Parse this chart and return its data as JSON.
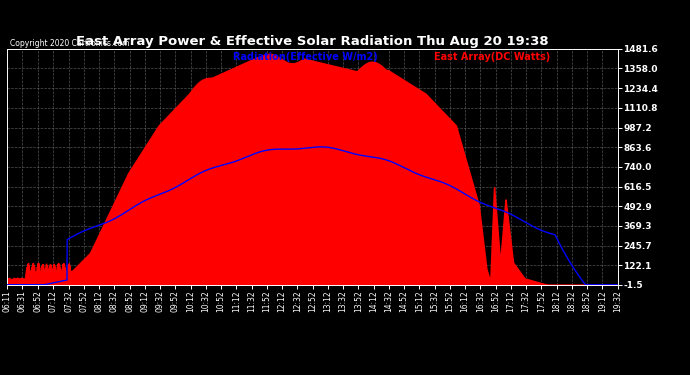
{
  "title": "East Array Power & Effective Solar Radiation Thu Aug 20 19:38",
  "copyright": "Copyright 2020 Cartronics.com",
  "legend_blue": "Radiation(Effective W/m2)",
  "legend_red": "East Array(DC Watts)",
  "bg_color": "#000000",
  "plot_bg_color": "#000000",
  "grid_color": "#888888",
  "title_color": "#ffffff",
  "copyright_color": "#ffffff",
  "ymin": -1.5,
  "ymax": 1481.6,
  "yticks": [
    1481.6,
    1358.0,
    1234.4,
    1110.8,
    987.2,
    863.6,
    740.0,
    616.5,
    492.9,
    369.3,
    245.7,
    122.1,
    -1.5
  ],
  "xlabel_times": [
    "06:11",
    "06:31",
    "06:52",
    "07:12",
    "07:32",
    "07:52",
    "08:12",
    "08:32",
    "08:52",
    "09:12",
    "09:32",
    "09:52",
    "10:12",
    "10:32",
    "10:52",
    "11:12",
    "11:32",
    "11:52",
    "12:12",
    "12:32",
    "12:52",
    "13:12",
    "13:32",
    "13:52",
    "14:12",
    "14:32",
    "14:52",
    "15:12",
    "15:32",
    "15:52",
    "16:12",
    "16:32",
    "16:52",
    "17:12",
    "17:32",
    "17:52",
    "18:12",
    "18:32",
    "18:52",
    "19:12",
    "19:32"
  ]
}
